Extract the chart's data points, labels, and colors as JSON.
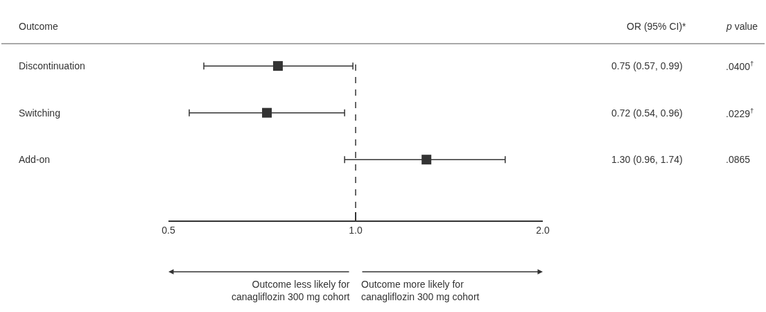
{
  "chart_data": {
    "type": "scatter",
    "orientation": "horizontal",
    "log": "x",
    "marker": "square",
    "legend": false,
    "categories": [
      "Discontinuation",
      "Switching",
      "Add-on"
    ],
    "values": [
      0.75,
      0.72,
      1.3
    ],
    "errors": [
      [
        0.57,
        0.99
      ],
      [
        0.54,
        0.96
      ],
      [
        0.96,
        1.74
      ]
    ],
    "value_labels": [
      "0.75 (0.57, 0.99)",
      "0.72 (0.54, 0.96)",
      "1.30 (0.96, 1.74)"
    ],
    "color": "#333333",
    "xlim": [
      0.5,
      2.0
    ],
    "xticks": [
      {
        "value": 0.5,
        "label": "0.5"
      },
      {
        "value": 1.0,
        "label": "1.0"
      },
      {
        "value": 2.0,
        "label": "2.0"
      }
    ],
    "ref_lines": [
      {
        "axis": "x",
        "value": 1.0,
        "line_style": "dashed",
        "color": "#333333"
      }
    ],
    "annotations": [
      "Outcome",
      "OR (95% CI)*",
      "p value",
      ".0400$^{†}$",
      ".0229$^{†}$",
      ".0865",
      "Outcome less likely for\ncanagliflozin 300 mg cohort",
      "Outcome more likely for\ncanagliflozin 300 mg cohort"
    ]
  }
}
